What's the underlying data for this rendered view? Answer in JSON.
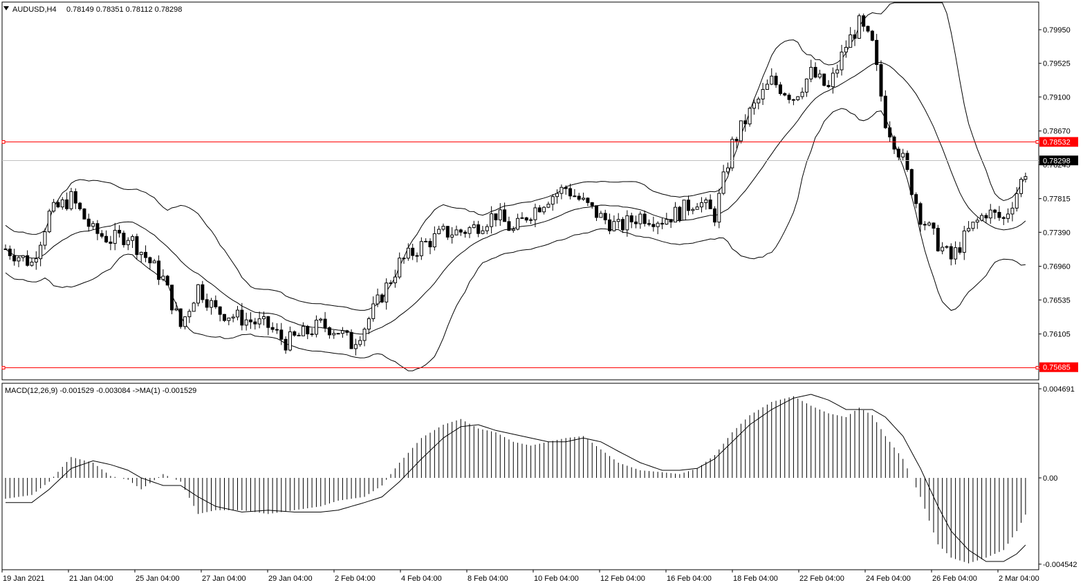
{
  "window": {
    "symbol_header": "AUDUSD,H4",
    "ohlc": "0.78149 0.78351 0.78112 0.78298"
  },
  "indicator": {
    "macd_header": "MACD(12,26,9) -0.001529 -0.003084  ->MA(1) -0.001529"
  },
  "colors": {
    "background": "#ffffff",
    "axis": "#000000",
    "level_line": "#ff0000",
    "price_line": "#c0c0c0",
    "tag_fill_level": "#ff0000",
    "tag_fill_price": "#000000"
  },
  "chart_data": [
    {
      "type": "candlestick",
      "title": "AUDUSD,H4",
      "y_ticks": [
        "0.79950",
        "0.79525",
        "0.79100",
        "0.78670",
        "0.78245",
        "0.77815",
        "0.77390",
        "0.76960",
        "0.76535",
        "0.76105",
        "0.75685"
      ],
      "ylim": [
        0.7557,
        0.8039
      ],
      "x_ticks": [
        "19 Jan 2021",
        "21 Jan 04:00",
        "25 Jan 04:00",
        "27 Jan 04:00",
        "29 Jan 04:00",
        "2 Feb 04:00",
        "4 Feb 04:00",
        "8 Feb 04:00",
        "10 Feb 04:00",
        "12 Feb 04:00",
        "16 Feb 04:00",
        "18 Feb 04:00",
        "22 Feb 04:00",
        "24 Feb 04:00",
        "26 Feb 04:00",
        "2 Mar 04:00"
      ],
      "horizontal_levels": [
        {
          "value": 0.78532,
          "label": "0.78532"
        },
        {
          "value": 0.75685,
          "label": "0.75685"
        }
      ],
      "current_price": {
        "value": 0.78298,
        "label": "0.78298"
      },
      "overlays": [
        "Bollinger Bands upper",
        "Bollinger Bands middle",
        "Bollinger Bands lower"
      ],
      "close_path": [
        [
          0,
          0.7718
        ],
        [
          6,
          0.77
        ],
        [
          10,
          0.7762
        ],
        [
          15,
          0.7782
        ],
        [
          20,
          0.774
        ],
        [
          24,
          0.773
        ],
        [
          28,
          0.7735
        ],
        [
          31,
          0.7715
        ],
        [
          36,
          0.768
        ],
        [
          40,
          0.762
        ],
        [
          44,
          0.767
        ],
        [
          48,
          0.764
        ],
        [
          54,
          0.763
        ],
        [
          60,
          0.762
        ],
        [
          64,
          0.76
        ],
        [
          68,
          0.761
        ],
        [
          72,
          0.7622
        ],
        [
          76,
          0.7615
        ],
        [
          79,
          0.7598
        ],
        [
          82,
          0.762
        ],
        [
          86,
          0.766
        ],
        [
          90,
          0.77
        ],
        [
          95,
          0.7722
        ],
        [
          100,
          0.7738
        ],
        [
          104,
          0.774
        ],
        [
          107,
          0.7745
        ],
        [
          112,
          0.7762
        ],
        [
          116,
          0.774
        ],
        [
          119,
          0.776
        ],
        [
          124,
          0.7783
        ],
        [
          128,
          0.7795
        ],
        [
          132,
          0.7776
        ],
        [
          136,
          0.7758
        ],
        [
          140,
          0.7745
        ],
        [
          145,
          0.776
        ],
        [
          150,
          0.7755
        ],
        [
          154,
          0.7765
        ],
        [
          158,
          0.778
        ],
        [
          162,
          0.776
        ],
        [
          166,
          0.785
        ],
        [
          170,
          0.789
        ],
        [
          175,
          0.793
        ],
        [
          180,
          0.791
        ],
        [
          184,
          0.794
        ],
        [
          188,
          0.792
        ],
        [
          192,
          0.7975
        ],
        [
          195,
          0.8002
        ],
        [
          198,
          0.7975
        ],
        [
          201,
          0.788
        ],
        [
          205,
          0.783
        ],
        [
          209,
          0.776
        ],
        [
          213,
          0.7725
        ],
        [
          216,
          0.7705
        ],
        [
          220,
          0.774
        ],
        [
          224,
          0.7765
        ],
        [
          228,
          0.7755
        ],
        [
          231,
          0.779
        ],
        [
          234,
          0.783
        ]
      ],
      "n_candles": 235
    },
    {
      "type": "macd",
      "title": "MACD(12,26,9) -0.001529 -0.003084  ->MA(1) -0.001529",
      "parameters": [
        12,
        26,
        9
      ],
      "values": {
        "macd": -0.001529,
        "signal": -0.003084,
        "ma1": -0.001529
      },
      "y_ticks": [
        "0.004691",
        "0.00",
        "-0.004542"
      ],
      "ylim": [
        -0.004542,
        0.004691
      ],
      "histogram_path": [
        [
          0,
          -0.0011
        ],
        [
          6,
          -0.0009
        ],
        [
          10,
          -0.0002
        ],
        [
          15,
          0.0011
        ],
        [
          20,
          0.0008
        ],
        [
          24,
          0.0001
        ],
        [
          28,
          -0.0001
        ],
        [
          31,
          -0.0006
        ],
        [
          36,
          0.0002
        ],
        [
          40,
          -0.0002
        ],
        [
          44,
          -0.0019
        ],
        [
          48,
          -0.0017
        ],
        [
          54,
          -0.0017
        ],
        [
          60,
          -0.0019
        ],
        [
          66,
          -0.0017
        ],
        [
          72,
          -0.0015
        ],
        [
          76,
          -0.0012
        ],
        [
          82,
          -0.001
        ],
        [
          86,
          -0.0004
        ],
        [
          90,
          0.0008
        ],
        [
          95,
          0.0021
        ],
        [
          100,
          0.0028
        ],
        [
          104,
          0.0031
        ],
        [
          108,
          0.0026
        ],
        [
          112,
          0.0024
        ],
        [
          116,
          0.0019
        ],
        [
          120,
          0.0017
        ],
        [
          124,
          0.0019
        ],
        [
          128,
          0.0021
        ],
        [
          132,
          0.0022
        ],
        [
          136,
          0.0015
        ],
        [
          140,
          0.0008
        ],
        [
          145,
          0.0004
        ],
        [
          150,
          0.0003
        ],
        [
          154,
          0.0002
        ],
        [
          158,
          0.0005
        ],
        [
          162,
          0.0012
        ],
        [
          166,
          0.0024
        ],
        [
          170,
          0.0033
        ],
        [
          175,
          0.004
        ],
        [
          180,
          0.0043
        ],
        [
          184,
          0.0038
        ],
        [
          188,
          0.0034
        ],
        [
          192,
          0.0032
        ],
        [
          195,
          0.0037
        ],
        [
          198,
          0.0033
        ],
        [
          201,
          0.0022
        ],
        [
          205,
          0.001
        ],
        [
          209,
          -0.001
        ],
        [
          213,
          -0.0035
        ],
        [
          216,
          -0.0042
        ],
        [
          220,
          -0.0045
        ],
        [
          224,
          -0.0042
        ],
        [
          228,
          -0.0038
        ],
        [
          231,
          -0.0028
        ],
        [
          234,
          -0.0015
        ]
      ],
      "signal_path": [
        [
          0,
          -0.0013
        ],
        [
          6,
          -0.0013
        ],
        [
          10,
          -0.0006
        ],
        [
          15,
          0.0005
        ],
        [
          20,
          0.0009
        ],
        [
          24,
          0.0007
        ],
        [
          28,
          0.0004
        ],
        [
          31,
          0.0
        ],
        [
          36,
          -0.0004
        ],
        [
          40,
          -0.0004
        ],
        [
          44,
          -0.001
        ],
        [
          48,
          -0.0015
        ],
        [
          54,
          -0.0018
        ],
        [
          60,
          -0.0017
        ],
        [
          66,
          -0.0018
        ],
        [
          72,
          -0.0018
        ],
        [
          76,
          -0.0017
        ],
        [
          82,
          -0.0013
        ],
        [
          86,
          -0.001
        ],
        [
          90,
          -0.0002
        ],
        [
          95,
          0.001
        ],
        [
          100,
          0.0021
        ],
        [
          104,
          0.0027
        ],
        [
          108,
          0.0028
        ],
        [
          112,
          0.0025
        ],
        [
          116,
          0.0023
        ],
        [
          120,
          0.0021
        ],
        [
          124,
          0.0019
        ],
        [
          128,
          0.0019
        ],
        [
          132,
          0.0021
        ],
        [
          136,
          0.0019
        ],
        [
          140,
          0.0014
        ],
        [
          145,
          0.0008
        ],
        [
          150,
          0.0004
        ],
        [
          154,
          0.0004
        ],
        [
          158,
          0.0005
        ],
        [
          162,
          0.001
        ],
        [
          166,
          0.0019
        ],
        [
          170,
          0.0028
        ],
        [
          175,
          0.0036
        ],
        [
          180,
          0.0042
        ],
        [
          184,
          0.0044
        ],
        [
          188,
          0.0041
        ],
        [
          192,
          0.0036
        ],
        [
          195,
          0.0036
        ],
        [
          198,
          0.0036
        ],
        [
          201,
          0.0032
        ],
        [
          205,
          0.0022
        ],
        [
          209,
          0.0005
        ],
        [
          213,
          -0.0015
        ],
        [
          216,
          -0.0028
        ],
        [
          220,
          -0.0038
        ],
        [
          224,
          -0.0044
        ],
        [
          228,
          -0.0044
        ],
        [
          231,
          -0.004
        ],
        [
          234,
          -0.0033
        ]
      ]
    }
  ]
}
